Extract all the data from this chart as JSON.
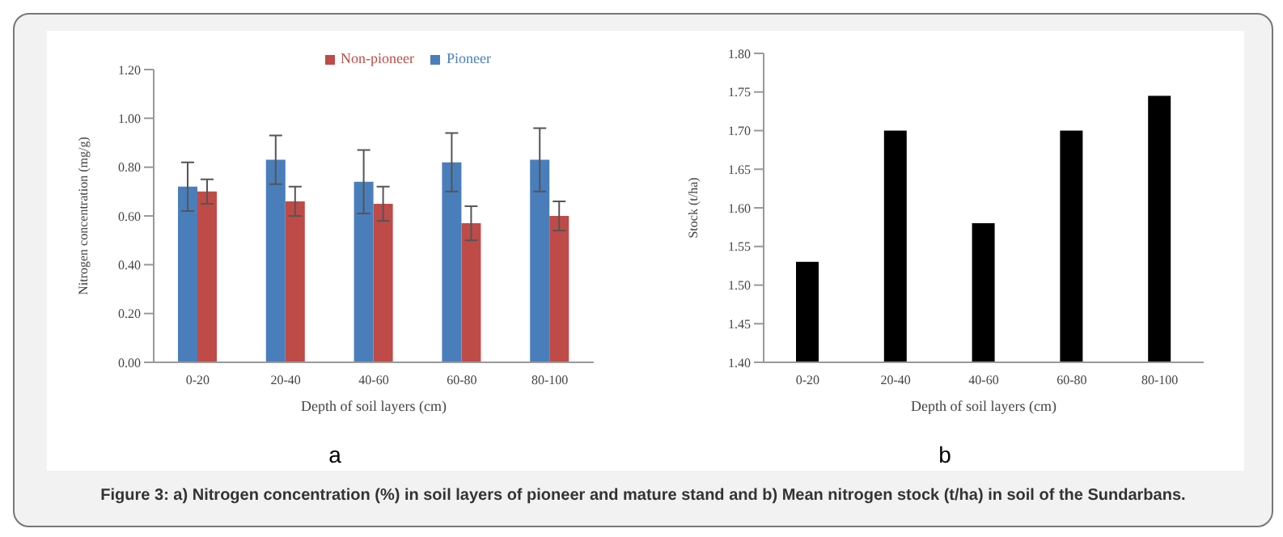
{
  "chart_data": [
    {
      "type": "bar",
      "categories": [
        "0-20",
        "20-40",
        "40-60",
        "60-80",
        "80-100"
      ],
      "xlabel": "Depth of soil layers (cm)",
      "ylabel": "Nitrogen concentration (mg/g)",
      "series": [
        {
          "name": "Pioneer",
          "color": "#4a7ebb",
          "values": [
            0.72,
            0.83,
            0.74,
            0.82,
            0.83
          ],
          "errors": [
            0.1,
            0.1,
            0.13,
            0.12,
            0.13
          ]
        },
        {
          "name": "Non-pioneer",
          "color": "#be4b48",
          "values": [
            0.7,
            0.66,
            0.65,
            0.57,
            0.6
          ],
          "errors": [
            0.05,
            0.06,
            0.07,
            0.07,
            0.06
          ]
        }
      ],
      "ylim": [
        0,
        1.2
      ],
      "yticks": [
        {
          "value": 0,
          "label": "0.00"
        },
        {
          "value": 0.2,
          "label": "0.20"
        },
        {
          "value": 0.4,
          "label": "0.40"
        },
        {
          "value": 0.6,
          "label": "0.60"
        },
        {
          "value": 0.8,
          "label": "0.80"
        },
        {
          "value": 1,
          "label": "1.00"
        },
        {
          "value": 1.2,
          "label": "1.20"
        }
      ],
      "legend": "top",
      "grid": false,
      "annotations": [
        "a",
        "Figure 3: a) Nitrogen concentration (%) in soil layers of pioneer and mature stand and b) Mean nitrogen stock (t/ha) in soil of the Sundarbans."
      ]
    },
    {
      "type": "bar",
      "categories": [
        "0-20",
        "20-40",
        "40-60",
        "60-80",
        "80-100"
      ],
      "xlabel": "Depth of soil layers (cm)",
      "ylabel": "Stock (t/ha)",
      "values": [
        1.53,
        1.7,
        1.58,
        1.7,
        1.745
      ],
      "color": "#000000",
      "ylim": [
        1.4,
        1.8
      ],
      "yticks": [
        {
          "value": 1.4,
          "label": "1.40"
        },
        {
          "value": 1.45,
          "label": "1.45"
        },
        {
          "value": 1.5,
          "label": "1.50"
        },
        {
          "value": 1.55,
          "label": "1.55"
        },
        {
          "value": 1.6,
          "label": "1.60"
        },
        {
          "value": 1.65,
          "label": "1.65"
        },
        {
          "value": 1.7,
          "label": "1.70"
        },
        {
          "value": 1.75,
          "label": "1.75"
        },
        {
          "value": 1.8,
          "label": "1.80"
        }
      ],
      "grid": false,
      "annotations": [
        "b"
      ]
    }
  ]
}
